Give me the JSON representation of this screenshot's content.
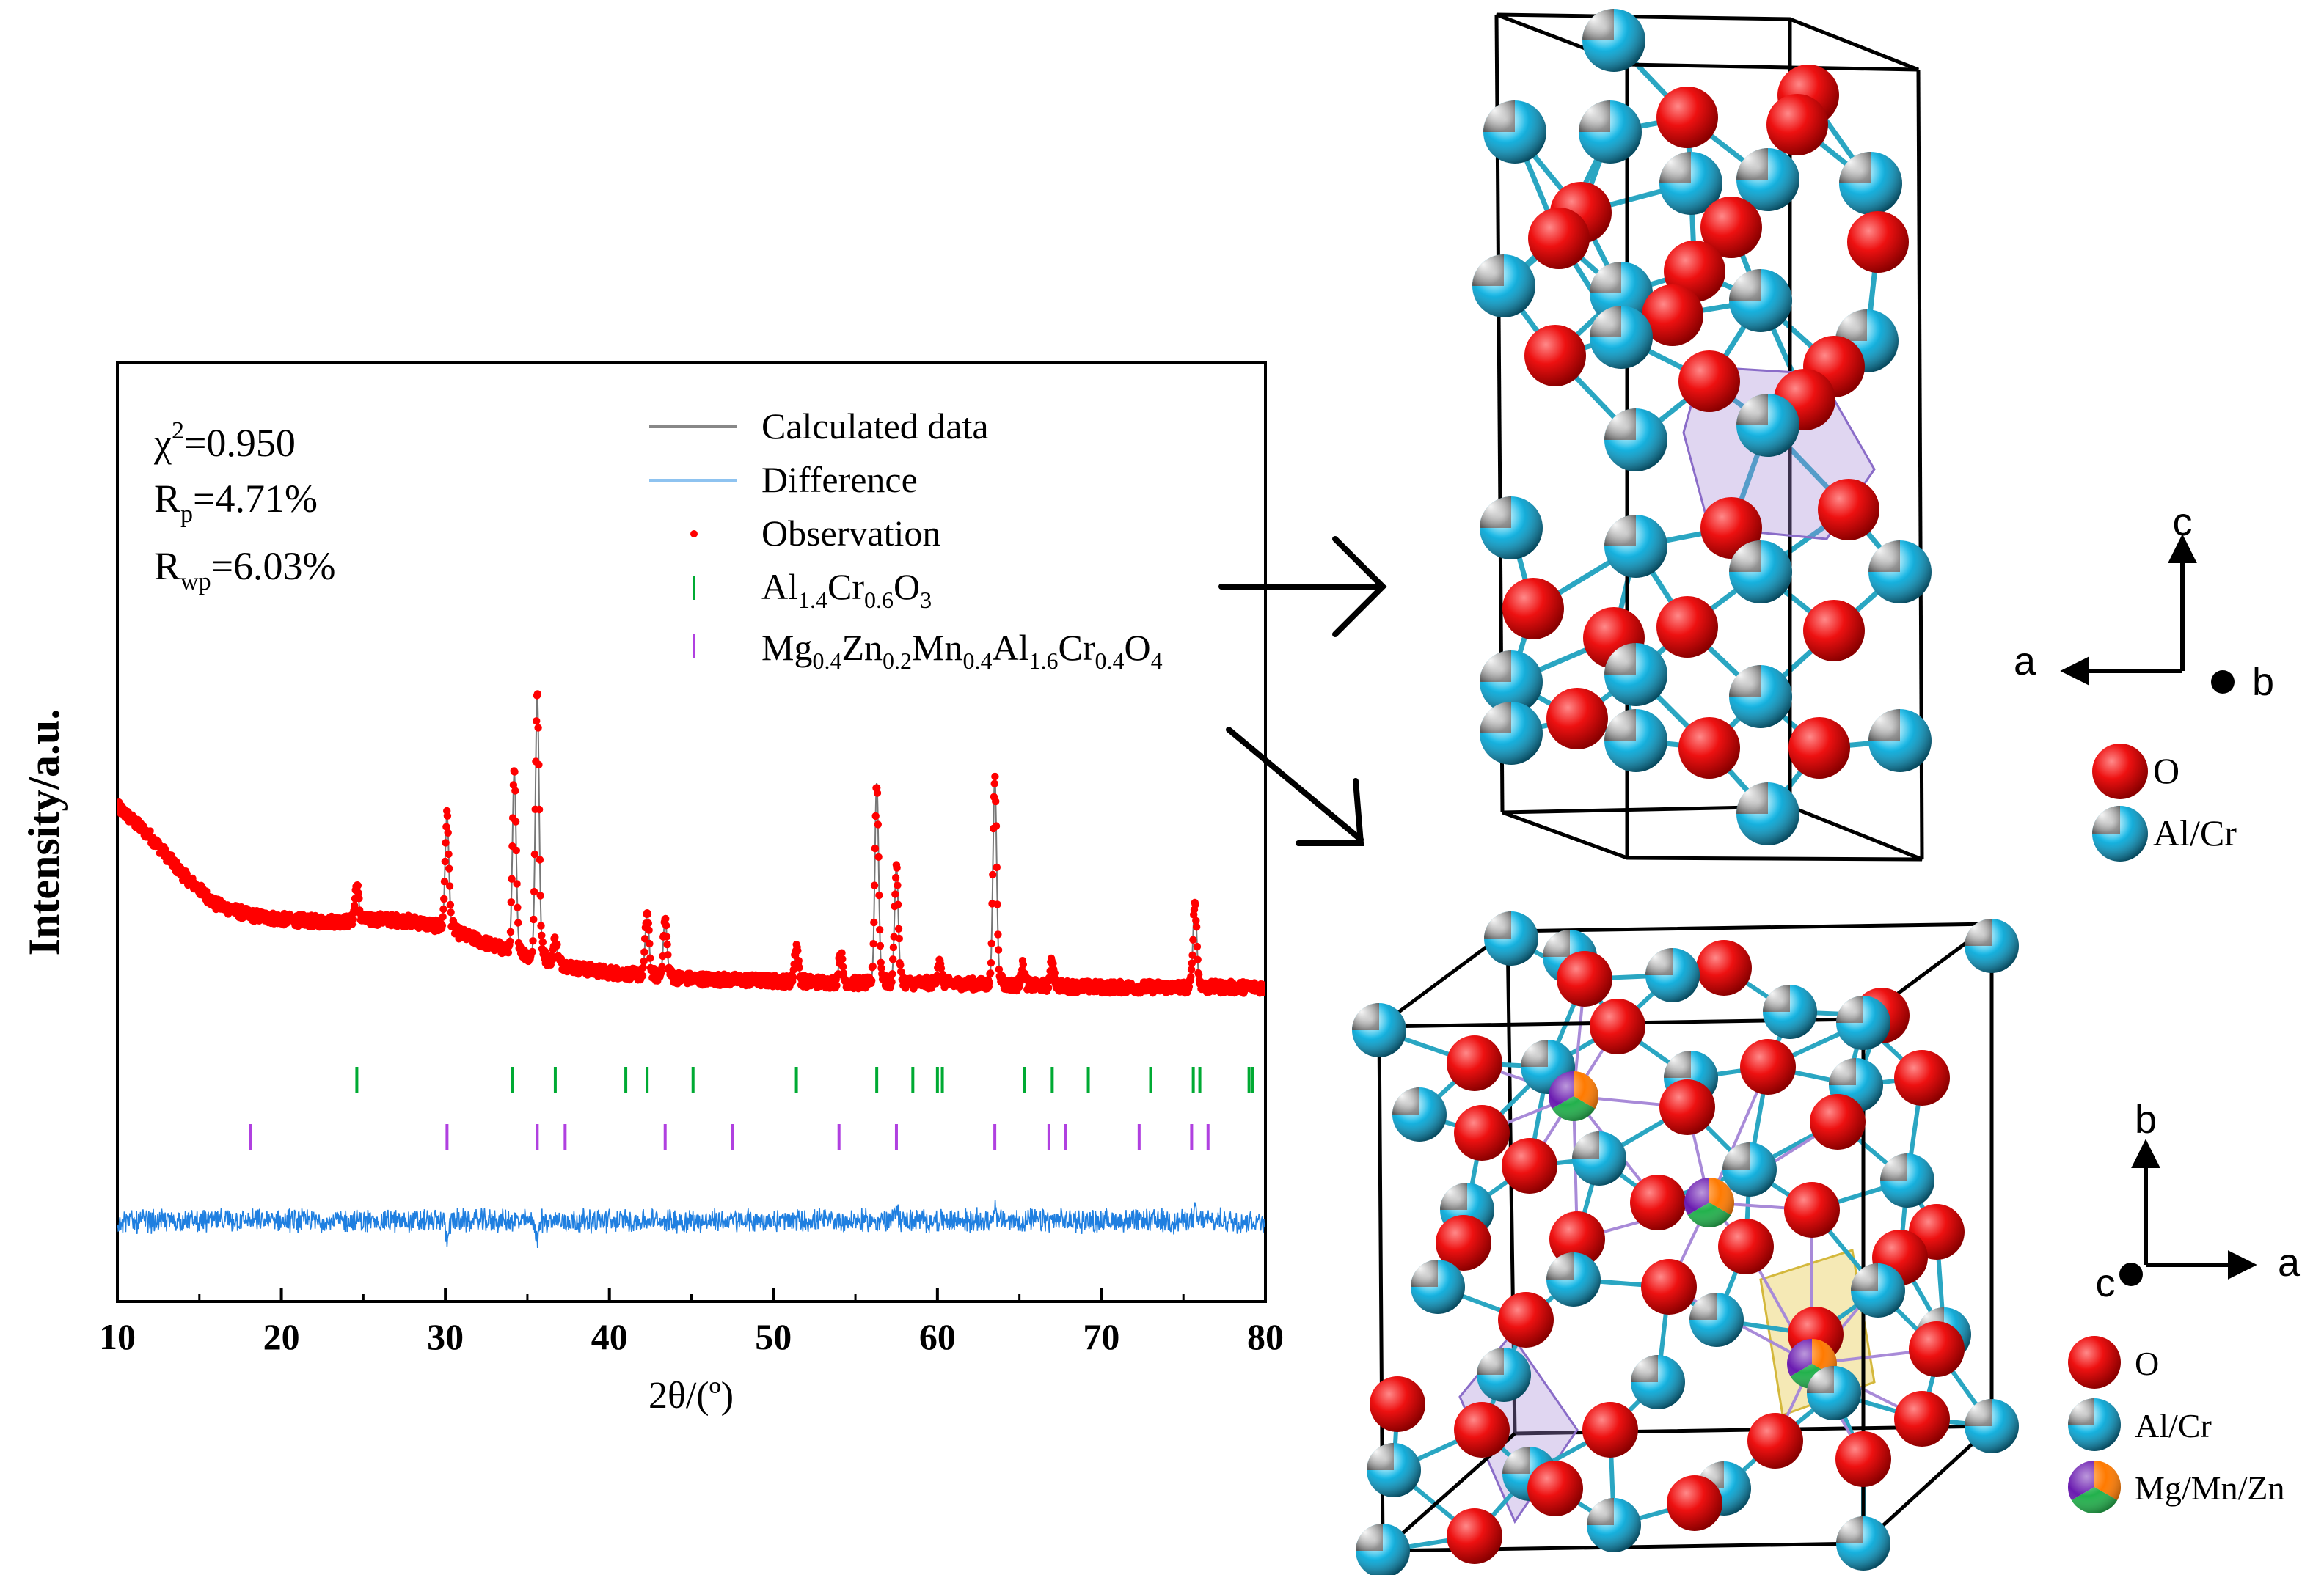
{
  "chart_data": {
    "type": "scatter",
    "title": "",
    "xlabel": "2θ/(º)",
    "ylabel": "Intensity/a.u.",
    "xlim": [
      10,
      80
    ],
    "xticks": [
      "10",
      "20",
      "30",
      "40",
      "50",
      "60",
      "70",
      "80"
    ],
    "y_axis_values_shown": false,
    "fit_stats": {
      "chi2_prefix": "χ",
      "chi2_sup": "2",
      "chi2_value": "=0.950",
      "rp_prefix": "R",
      "rp_sub": "p",
      "rp_value": "=4.71%",
      "rwp_prefix": "R",
      "rwp_sub": "wp",
      "rwp_value": "=6.03%"
    },
    "legend": {
      "calculated": "Calculated data",
      "difference": "Difference",
      "observation": "Observation",
      "phase1": "Al1.4Cr0.6O3",
      "phase2": "Mg0.4Zn0.2Mn0.4Al1.6Cr0.4O4"
    },
    "series": [
      {
        "name": "Observation",
        "type": "scatter",
        "color": "#ff0000",
        "baseline_points": [
          [
            10,
            1.0
          ],
          [
            12,
            0.86
          ],
          [
            14,
            0.68
          ],
          [
            16,
            0.54
          ],
          [
            18,
            0.49
          ],
          [
            20,
            0.47
          ],
          [
            22,
            0.46
          ],
          [
            24,
            0.46
          ],
          [
            26,
            0.47
          ],
          [
            28,
            0.46
          ],
          [
            30,
            0.43
          ],
          [
            32,
            0.37
          ],
          [
            34,
            0.32
          ],
          [
            36,
            0.28
          ],
          [
            38,
            0.24
          ],
          [
            40,
            0.22
          ],
          [
            45,
            0.19
          ],
          [
            50,
            0.18
          ],
          [
            55,
            0.17
          ],
          [
            60,
            0.17
          ],
          [
            65,
            0.16
          ],
          [
            70,
            0.15
          ],
          [
            75,
            0.15
          ],
          [
            80,
            0.15
          ]
        ],
        "peaks": [
          {
            "two_theta": 24.6,
            "height": 0.17
          },
          {
            "two_theta": 30.1,
            "height": 0.53
          },
          {
            "two_theta": 34.2,
            "height": 0.84
          },
          {
            "two_theta": 35.6,
            "height": 1.24
          },
          {
            "two_theta": 36.7,
            "height": 0.11
          },
          {
            "two_theta": 42.3,
            "height": 0.3
          },
          {
            "two_theta": 43.4,
            "height": 0.27
          },
          {
            "two_theta": 51.4,
            "height": 0.17
          },
          {
            "two_theta": 54.1,
            "height": 0.14
          },
          {
            "two_theta": 56.3,
            "height": 0.94
          },
          {
            "two_theta": 57.5,
            "height": 0.55
          },
          {
            "two_theta": 60.1,
            "height": 0.1
          },
          {
            "two_theta": 63.5,
            "height": 0.97
          },
          {
            "two_theta": 65.2,
            "height": 0.09
          },
          {
            "two_theta": 67.0,
            "height": 0.12
          },
          {
            "two_theta": 75.7,
            "height": 0.4
          }
        ]
      },
      {
        "name": "Calculated data",
        "type": "line",
        "color": "#888888",
        "note": "follows observation"
      },
      {
        "name": "Difference",
        "type": "line",
        "color": "#1f7fe0",
        "note": "noise around zero offset",
        "spikes": [
          [
            30.1,
            -0.08
          ],
          [
            35.6,
            -0.09
          ],
          [
            57.5,
            0.08
          ],
          [
            63.5,
            0.08
          ],
          [
            75.7,
            0.04
          ]
        ]
      }
    ],
    "tick_marks": {
      "Al1.4Cr0.6O3": {
        "color": "#00aa33",
        "positions": [
          24.6,
          34.1,
          36.7,
          41.0,
          42.3,
          45.1,
          51.4,
          56.3,
          58.5,
          60.0,
          60.3,
          65.3,
          67.0,
          69.2,
          73.0,
          75.6,
          76.0,
          79.0,
          79.2
        ]
      },
      "Mg0.4Zn0.2Mn0.4Al1.6Cr0.4O4": {
        "color": "#b040e0",
        "positions": [
          18.1,
          30.1,
          35.6,
          37.3,
          43.4,
          47.5,
          54.0,
          57.5,
          63.5,
          66.8,
          67.8,
          72.3,
          75.5,
          76.5
        ]
      }
    }
  },
  "structures": {
    "top": {
      "axes": {
        "up": "c",
        "left": "a",
        "out": "b"
      },
      "legend": [
        {
          "label": "O",
          "colors": [
            "#ee1111"
          ]
        },
        {
          "label": "Al/Cr",
          "colors": [
            "#9a9a9a",
            "#18b8e6"
          ]
        }
      ]
    },
    "bottom": {
      "axes": {
        "up": "b",
        "right": "a",
        "out": "c"
      },
      "legend": [
        {
          "label": "O",
          "colors": [
            "#ee1111"
          ]
        },
        {
          "label": "Al/Cr",
          "colors": [
            "#9a9a9a",
            "#18b8e6"
          ]
        },
        {
          "label": "Mg/Mn/Zn",
          "colors": [
            "#ff7a00",
            "#22b14c",
            "#6a1bb0"
          ]
        }
      ]
    }
  }
}
